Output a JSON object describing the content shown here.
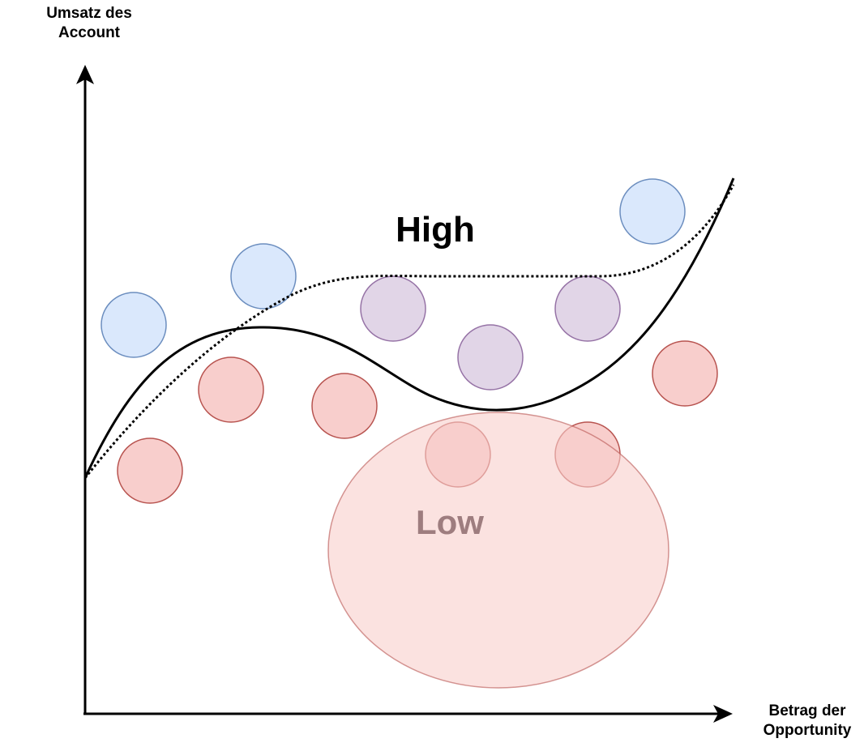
{
  "axes": {
    "y_label_line1": "Umsatz des",
    "y_label_line2": "Account",
    "x_label_line1": "Betrag der",
    "x_label_line2": "Opportunity"
  },
  "regions": {
    "high_label": "High",
    "low_label": "Low"
  },
  "colors": {
    "axis": "#000000",
    "blue_fill": "#dae8fc",
    "blue_stroke": "#6c8ebf",
    "purple_fill": "#e1d5e7",
    "purple_stroke": "#9673a6",
    "red_fill": "#f8cecc",
    "red_stroke": "#b85450"
  },
  "points": [
    {
      "group": "blue",
      "id": "blue-1"
    },
    {
      "group": "blue",
      "id": "blue-2"
    },
    {
      "group": "blue",
      "id": "blue-3"
    },
    {
      "group": "purple",
      "id": "purple-1"
    },
    {
      "group": "purple",
      "id": "purple-2"
    },
    {
      "group": "purple",
      "id": "purple-3"
    },
    {
      "group": "red",
      "id": "red-1"
    },
    {
      "group": "red",
      "id": "red-2"
    },
    {
      "group": "red",
      "id": "red-3"
    },
    {
      "group": "red",
      "id": "red-4"
    },
    {
      "group": "red",
      "id": "red-5"
    },
    {
      "group": "red",
      "id": "red-6"
    }
  ]
}
